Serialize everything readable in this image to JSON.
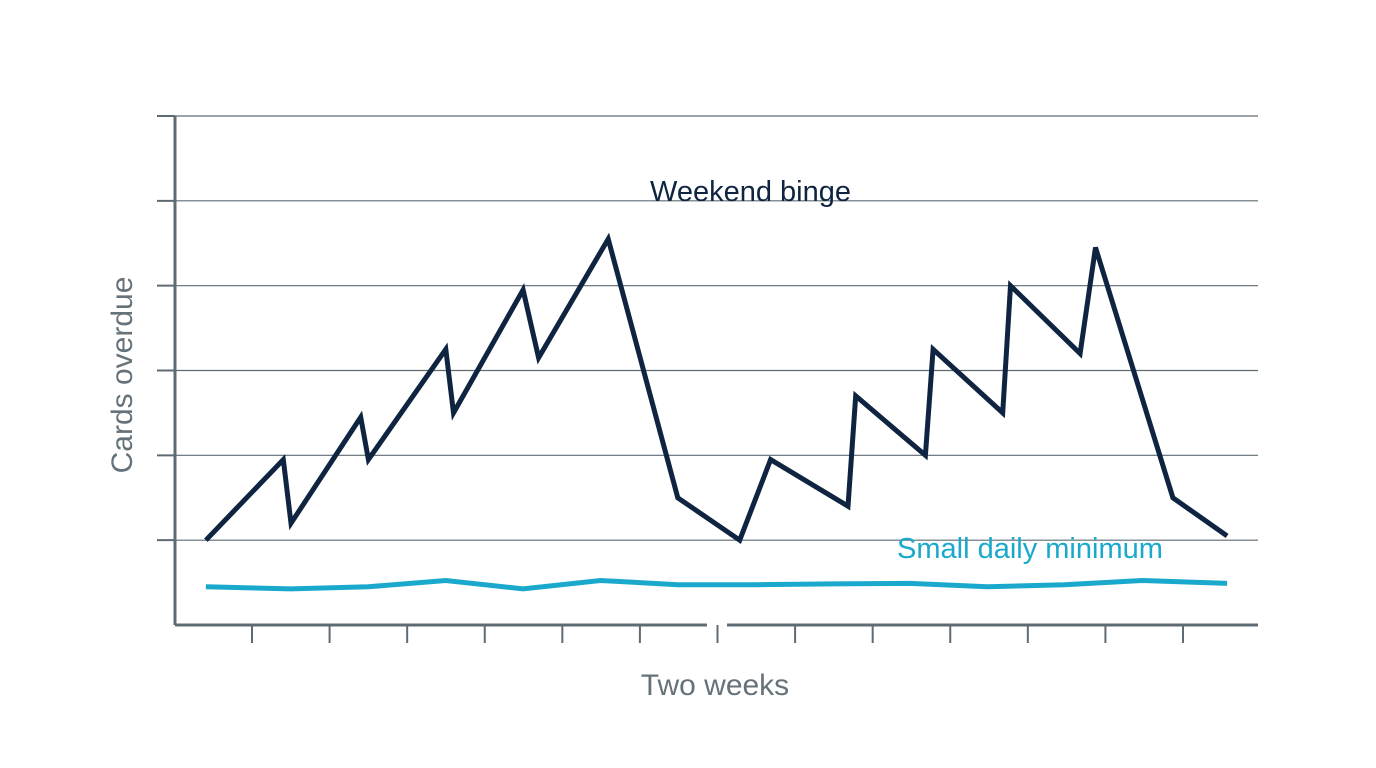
{
  "chart_data": {
    "type": "line",
    "title": "",
    "xlabel": "Two weeks",
    "ylabel": "Cards overdue",
    "grid": true,
    "ylim": [
      -2,
      10
    ],
    "xlim": [
      0.5,
      14.5
    ],
    "x_tick_count": 13,
    "series": [
      {
        "name": "Weekend binge",
        "color": "#0f2440",
        "x": [
          0.9,
          1.9,
          2.0,
          2.9,
          3.0,
          4.0,
          4.1,
          5.0,
          5.2,
          6.1,
          7.0,
          7.8,
          8.2,
          9.2,
          9.3,
          10.2,
          10.3,
          11.2,
          11.3,
          12.2,
          12.4,
          13.4,
          14.1
        ],
        "values": [
          0.0,
          1.9,
          0.4,
          2.9,
          1.9,
          4.5,
          3.0,
          5.9,
          4.3,
          7.1,
          1.0,
          0.0,
          1.9,
          0.8,
          3.4,
          2.0,
          4.5,
          3.0,
          6.0,
          4.4,
          6.9,
          1.0,
          0.1
        ]
      },
      {
        "name": "Small daily minimum",
        "color": "#1aa9cc",
        "x": [
          0.9,
          2.0,
          3.0,
          4.0,
          5.0,
          6.0,
          7.0,
          8.0,
          9.0,
          10.0,
          11.0,
          12.0,
          13.0,
          14.1
        ],
        "values": [
          -1.1,
          -1.15,
          -1.1,
          -0.95,
          -1.15,
          -0.95,
          -1.05,
          -1.05,
          -1.03,
          -1.02,
          -1.1,
          -1.05,
          -0.95,
          -1.02
        ]
      }
    ],
    "annotations": [
      {
        "text": "Weekend binge",
        "series": 0
      },
      {
        "text": "Small daily minimum",
        "series": 1
      }
    ]
  }
}
